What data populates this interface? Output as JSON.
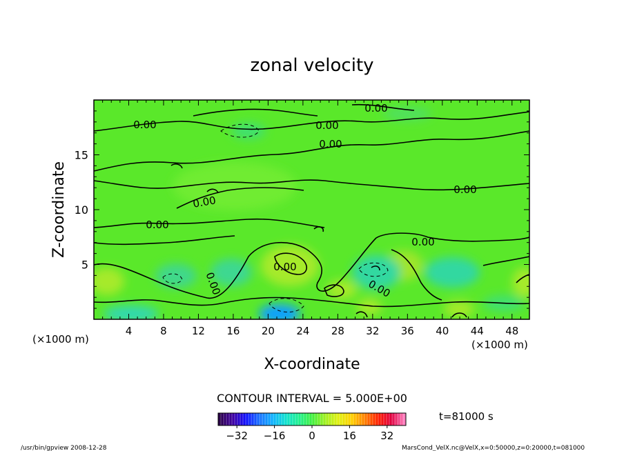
{
  "chart_data": {
    "type": "heatmap",
    "title": "zonal velocity",
    "xlabel": "X-coordinate",
    "ylabel": "Z-coordinate",
    "x_unit_left": "(×1000 m)",
    "x_unit_right": "(×1000 m)",
    "xlim": [
      0,
      50
    ],
    "ylim": [
      0,
      20
    ],
    "x_ticks": [
      4,
      8,
      12,
      16,
      20,
      24,
      28,
      32,
      36,
      40,
      44,
      48
    ],
    "y_ticks": [
      5,
      10,
      15
    ],
    "contour_interval_label": "CONTOUR INTERVAL = 5.000E+00",
    "contour_labels": [
      "0.00",
      "0.00",
      "0.00",
      "0.00",
      "0.00",
      "0.00",
      "0.00",
      "0.00",
      "0.00",
      "0.00",
      "0.00"
    ],
    "colorbar": {
      "range": [
        -40,
        40
      ],
      "ticks": [
        -32,
        -16,
        0,
        16,
        32
      ],
      "colors": [
        "#2a0048",
        "#4000a0",
        "#1010ff",
        "#1a70ff",
        "#10b0ff",
        "#10e0d0",
        "#20f090",
        "#40f040",
        "#a0f020",
        "#e0f010",
        "#ffd000",
        "#ff8000",
        "#ff2000",
        "#e00040",
        "#ff80c0"
      ]
    },
    "time_label": "t=81000 s",
    "footer_left": "/usr/bin/gpview   2008-12-28",
    "footer_right": "MarsCond_VelX.nc@VelX,x=0:50000,z=0:20000,t=081000"
  }
}
